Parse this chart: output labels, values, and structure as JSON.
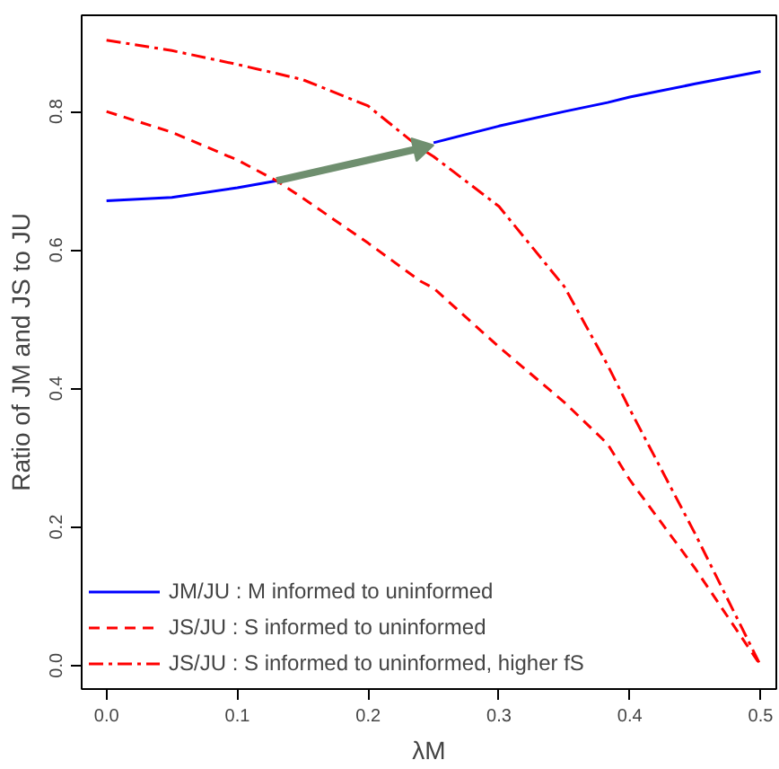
{
  "chart_data": {
    "type": "line",
    "xlabel": "λM",
    "ylabel": "Ratio of JM and JS to JU",
    "x": [
      0,
      0.05,
      0.1,
      0.13,
      0.15,
      0.2,
      0.24,
      0.25,
      0.3,
      0.35,
      0.383,
      0.4,
      0.45,
      0.5
    ],
    "series": [
      {
        "name": "JM/JU : M informed to uninformed",
        "color": "#0000ff",
        "line_style": "solid",
        "values": [
          0.671,
          0.676,
          0.69,
          0.7,
          null,
          null,
          null,
          0.755,
          0.779,
          0.8,
          0.813,
          0.821,
          0.84,
          0.858
        ]
      },
      {
        "name": "JS/JU : S informed to uninformed",
        "color": "#ff0000",
        "line_style": "dashed",
        "values": [
          0.8,
          0.77,
          0.73,
          0.7,
          0.675,
          0.61,
          0.555,
          0.545,
          0.46,
          0.38,
          0.32,
          0.268,
          0.14,
          0.0
        ]
      },
      {
        "name": "JS/JU : S informed to uninformed, higher fS",
        "color": "#ff0000",
        "line_style": "dashdot",
        "values": [
          0.903,
          0.888,
          0.868,
          0.855,
          0.846,
          0.808,
          0.747,
          0.735,
          0.663,
          0.547,
          0.434,
          0.37,
          0.19,
          0.0
        ]
      },
      {
        "color": "#6f8f6f",
        "x": [
          0.13,
          0.24
        ],
        "values": [
          0.7,
          0.747
        ],
        "marker": "triangle"
      }
    ],
    "xlim": [
      -0.019,
      0.512
    ],
    "ylim": [
      -0.034,
      0.939
    ],
    "xticks": [
      {
        "value": 0,
        "label": "0.0"
      },
      0.1,
      0.2,
      0.3,
      0.4,
      0.5
    ],
    "yticks": [
      {
        "value": 0,
        "label": "0.0"
      },
      0.2,
      0.4,
      0.6,
      0.8
    ],
    "grid": false,
    "legend": "bottom left",
    "marker": "none"
  }
}
